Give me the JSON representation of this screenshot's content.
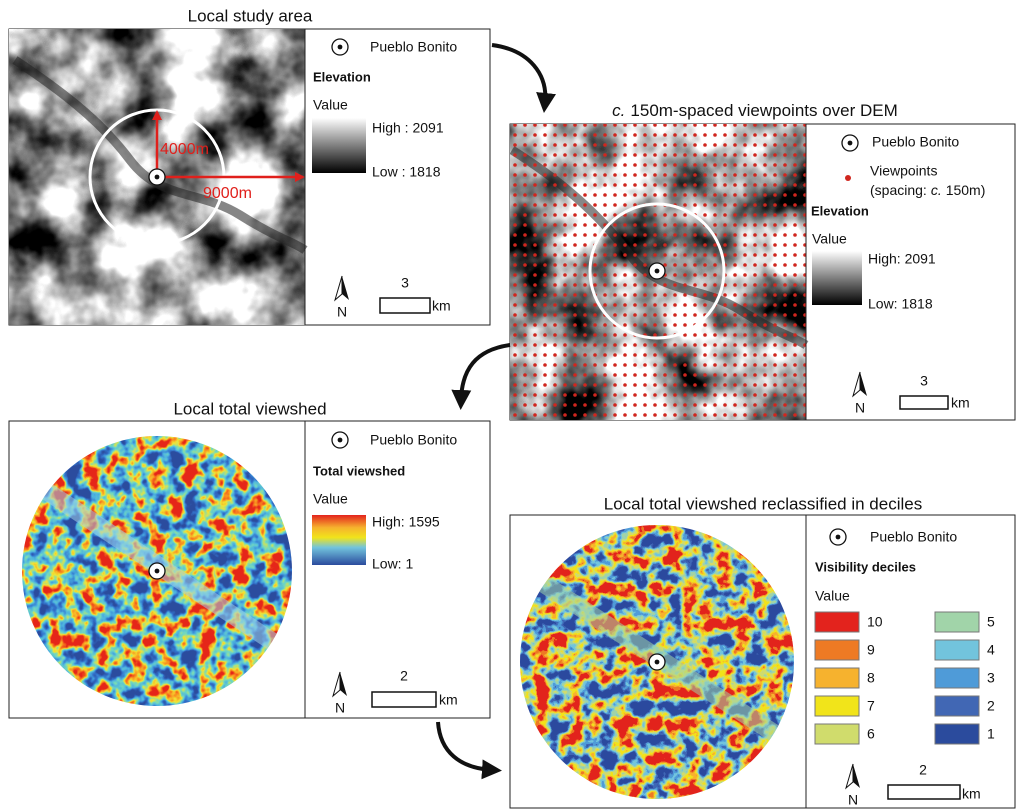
{
  "panels": [
    {
      "title": "Local study area",
      "annotations": [
        "4000m",
        "9000m"
      ],
      "legend": {
        "site": "Pueblo Bonito",
        "heading": "Elevation",
        "value_label": "Value",
        "high": "High : 2091",
        "low": "Low : 1818"
      },
      "scale": "3",
      "scale_unit": "km",
      "north": "N"
    },
    {
      "title_prefix": "c.",
      "title": "150m-spaced viewpoints over DEM",
      "legend": {
        "site": "Pueblo Bonito",
        "points": "Viewpoints",
        "points_note": [
          "(spacing:",
          "c.",
          "150m)"
        ],
        "heading": "Elevation",
        "value_label": "Value",
        "high": "High: 2091",
        "low": "Low: 1818"
      },
      "scale": "3",
      "scale_unit": "km",
      "north": "N"
    },
    {
      "title": "Local total viewshed",
      "legend": {
        "site": "Pueblo Bonito",
        "heading": "Total viewshed",
        "value_label": "Value",
        "high": "High: 1595",
        "low": "Low: 1"
      },
      "scale": "2",
      "scale_unit": "km",
      "north": "N"
    },
    {
      "title": "Local total viewshed reclassified in deciles",
      "legend": {
        "site": "Pueblo Bonito",
        "heading": "Visibility deciles",
        "value_label": "Value",
        "classes": [
          {
            "label": "10",
            "color": "#e3231d"
          },
          {
            "label": "9",
            "color": "#ee7a24"
          },
          {
            "label": "8",
            "color": "#f6b22e"
          },
          {
            "label": "7",
            "color": "#f1e41a"
          },
          {
            "label": "6",
            "color": "#d0dc6c"
          },
          {
            "label": "5",
            "color": "#a1d4a9"
          },
          {
            "label": "4",
            "color": "#72c4dd"
          },
          {
            "label": "3",
            "color": "#4f9bd8"
          },
          {
            "label": "2",
            "color": "#4167b4"
          },
          {
            "label": "1",
            "color": "#2b4b9d"
          }
        ]
      },
      "scale": "2",
      "scale_unit": "km",
      "north": "N"
    }
  ]
}
